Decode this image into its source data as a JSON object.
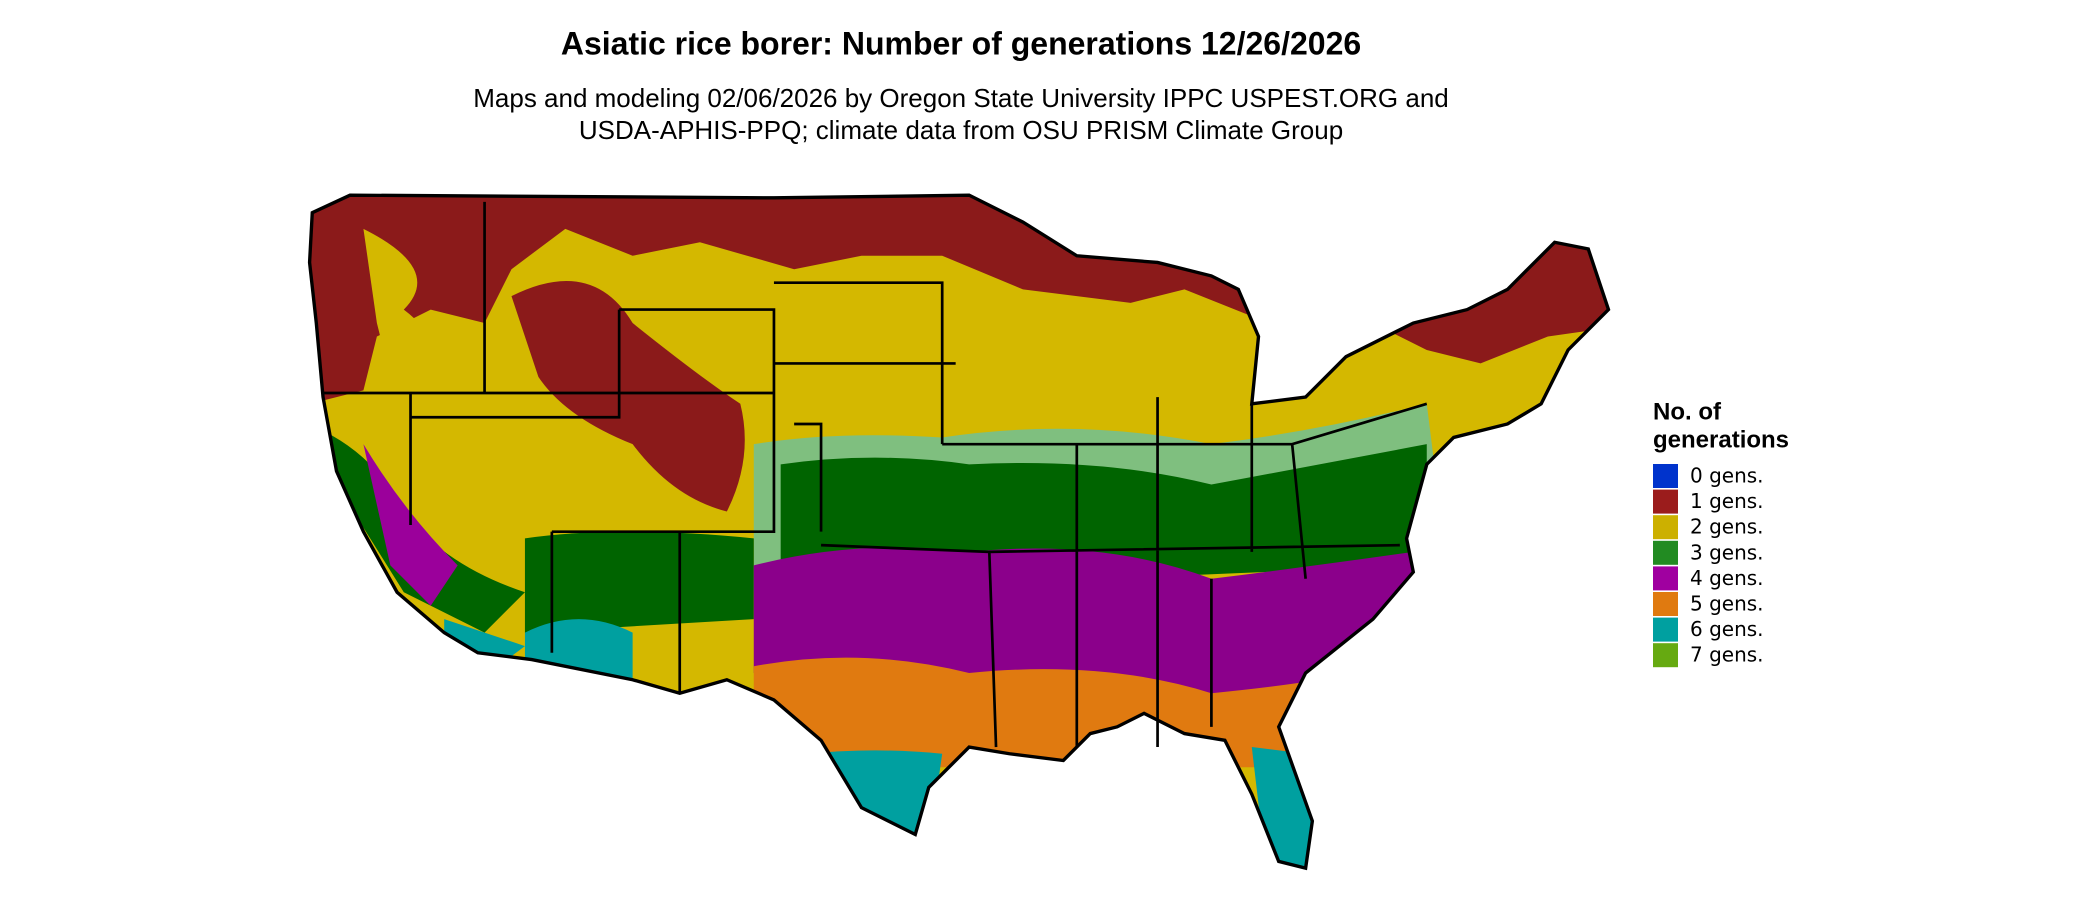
{
  "header": {
    "title": "Asiatic rice borer: Number of generations 12/26/2026",
    "subtitle": [
      "Maps and modeling 02/06/2026 by Oregon State University IPPC USPEST.ORG and",
      "USDA-APHIS-PPQ; climate data from OSU PRISM Climate Group"
    ]
  },
  "legend": {
    "title": [
      "No. of",
      "generations"
    ],
    "items": [
      {
        "label": "0 gens.",
        "color": "#0033cc"
      },
      {
        "label": "1 gens.",
        "color": "#9b1c1c"
      },
      {
        "label": "2 gens.",
        "color": "#ccb000"
      },
      {
        "label": "3 gens.",
        "color": "#228b22"
      },
      {
        "label": "4 gens.",
        "color": "#a000a0"
      },
      {
        "label": "5 gens.",
        "color": "#e07a10"
      },
      {
        "label": "6 gens.",
        "color": "#00a0a0"
      },
      {
        "label": "7 gens.",
        "color": "#66aa11"
      }
    ]
  }
}
